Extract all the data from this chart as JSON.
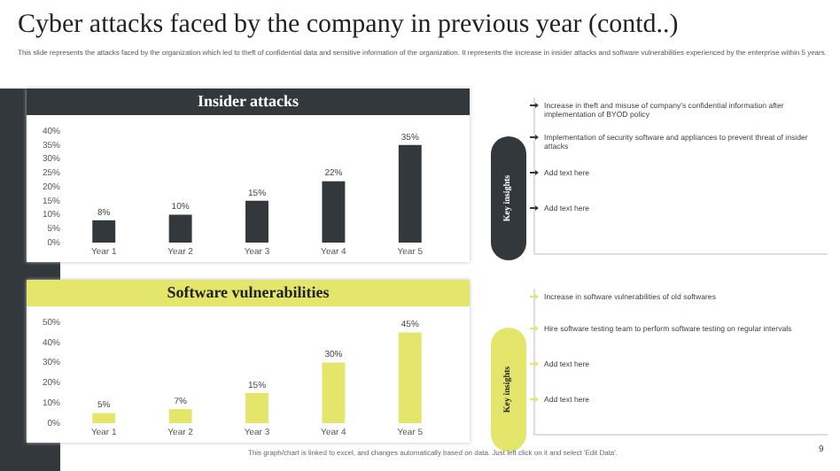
{
  "chart_data": [
    {
      "type": "bar",
      "title": "Insider attacks",
      "categories": [
        "Year 1",
        "Year 2",
        "Year 3",
        "Year 4",
        "Year 5"
      ],
      "values": [
        8,
        10,
        15,
        22,
        35
      ],
      "value_labels": [
        "8%",
        "10%",
        "15%",
        "22%",
        "35%"
      ],
      "color": "#33383d",
      "ylim": [
        0,
        40
      ],
      "yticks": [
        {
          "value": 0,
          "label": "0%"
        },
        {
          "value": 5,
          "label": "5%"
        },
        {
          "value": 10,
          "label": "10%"
        },
        {
          "value": 15,
          "label": "15%"
        },
        {
          "value": 20,
          "label": "20%"
        },
        {
          "value": 25,
          "label": "25%"
        },
        {
          "value": 30,
          "label": "30%"
        },
        {
          "value": 35,
          "label": "35%"
        },
        {
          "value": 40,
          "label": "40%"
        }
      ],
      "grid": false,
      "legend": false,
      "annotations": [
        "Cyber attacks faced by the company in previous year (contd..)",
        "This slide represents the attacks faced by the organization which led to theft of confidential data and sensitive information of the organization. It represents the increase in insider attacks and software vulnerabilities experienced by the enterprise within 5 years.",
        "Key insights",
        "Increase in theft and misuse of company's confidential information after implementation of BYOD policy",
        "Implementation of security software and appliances to prevent threat of insider attacks",
        "Add text here",
        "Add text here"
      ]
    },
    {
      "type": "bar",
      "title": "Software  vulnerabilities",
      "categories": [
        "Year 1",
        "Year 2",
        "Year 3",
        "Year 4",
        "Year 5"
      ],
      "values": [
        5,
        7,
        15,
        30,
        45
      ],
      "value_labels": [
        "5%",
        "7%",
        "15%",
        "30%",
        "45%"
      ],
      "color": "#e3e66a",
      "ylim": [
        0,
        50
      ],
      "yticks": [
        {
          "value": 0,
          "label": "0%"
        },
        {
          "value": 10,
          "label": "10%"
        },
        {
          "value": 20,
          "label": "20%"
        },
        {
          "value": 30,
          "label": "30%"
        },
        {
          "value": 40,
          "label": "40%"
        },
        {
          "value": 50,
          "label": "50%"
        }
      ],
      "grid": false,
      "legend": false,
      "annotations": [
        "Key insights",
        "Increase in software vulnerabilities  of old softwares",
        "Hire software testing team to perform  software testing on regular intervals",
        "Add text here",
        "Add text here",
        "This graph/chart is linked to excel, and changes automatically based on data. Just left click on it and select 'Edit Data'.",
        "9"
      ]
    }
  ]
}
